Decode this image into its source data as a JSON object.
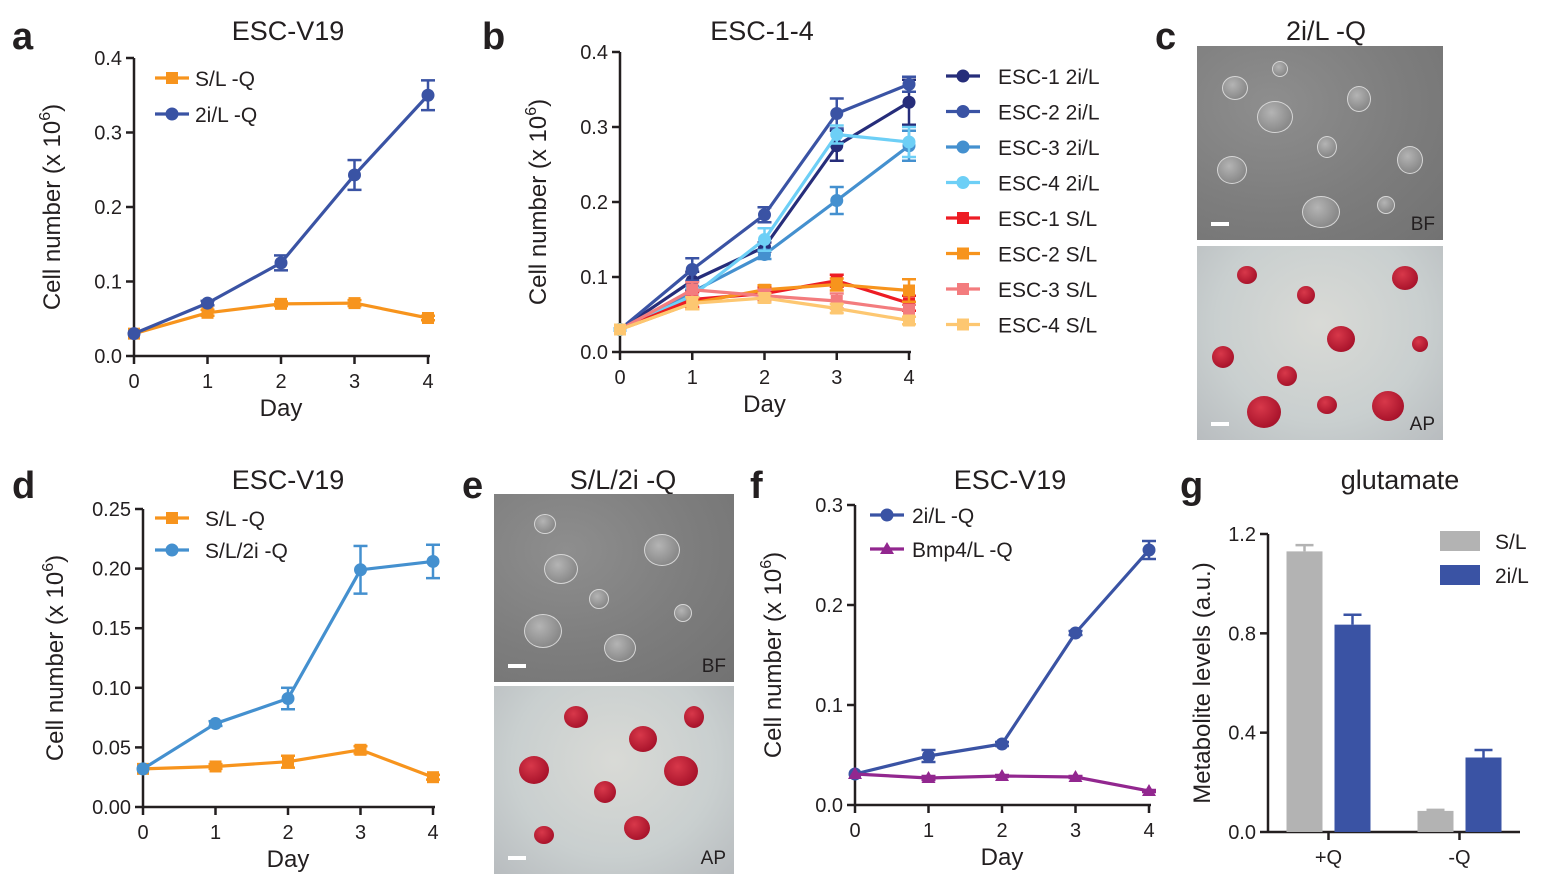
{
  "panels": {
    "a": {
      "letter": "a",
      "title": "ESC-V19"
    },
    "b": {
      "letter": "b",
      "title": "ESC-1-4"
    },
    "c": {
      "letter": "c",
      "title": "2i/L -Q",
      "top_tag": "BF",
      "bottom_tag": "AP"
    },
    "d": {
      "letter": "d",
      "title": "ESC-V19"
    },
    "e": {
      "letter": "e",
      "title": "S/L/2i -Q",
      "top_tag": "BF",
      "bottom_tag": "AP"
    },
    "f": {
      "letter": "f",
      "title": "ESC-V19"
    },
    "g": {
      "letter": "g",
      "title": "glutamate"
    }
  },
  "colors": {
    "orange": "#f7941d",
    "navy_blue": "#3a53a4",
    "light_blue": "#4490cf",
    "purple": "#92278f",
    "gray": "#b3b3b3",
    "dark_navy": "#262d7a",
    "sky_blue": "#6dcff6",
    "red": "#ed1c24",
    "pink": "#f37c7e",
    "light_orange": "#fdc771"
  },
  "chart_data": [
    {
      "id": "a",
      "type": "line",
      "title": "ESC-V19",
      "xlabel": "Day",
      "ylabel": "Cell number (x 10^6)",
      "x": [
        0,
        1,
        2,
        3,
        4
      ],
      "xlim": [
        0,
        4
      ],
      "ylim": [
        0,
        0.4
      ],
      "yticks": [
        "0.0",
        "0.1",
        "0.2",
        "0.3",
        "0.4"
      ],
      "legend": "top-left",
      "series": [
        {
          "name": "S/L -Q",
          "color": "#f7941d",
          "marker": "square",
          "values": [
            0.03,
            0.058,
            0.07,
            0.071,
            0.051
          ],
          "errors": [
            0,
            0.004,
            0.003,
            0.004,
            0.003
          ]
        },
        {
          "name": "2i/L -Q",
          "color": "#3a53a4",
          "marker": "circle",
          "values": [
            0.03,
            0.071,
            0.125,
            0.243,
            0.35
          ],
          "errors": [
            0,
            0.003,
            0.01,
            0.02,
            0.02
          ]
        }
      ]
    },
    {
      "id": "b",
      "type": "line",
      "title": "ESC-1-4",
      "xlabel": "Day",
      "ylabel": "Cell number (x 10^6)",
      "x": [
        0,
        1,
        2,
        3,
        4
      ],
      "xlim": [
        0,
        4
      ],
      "ylim": [
        0,
        0.4
      ],
      "yticks": [
        "0.0",
        "0.1",
        "0.2",
        "0.3",
        "0.4"
      ],
      "legend": "right",
      "series": [
        {
          "name": "ESC-1 2i/L",
          "color": "#262d7a",
          "marker": "circle",
          "values": [
            0.03,
            0.095,
            0.14,
            0.275,
            0.333
          ],
          "errors": [
            0,
            0.012,
            0.006,
            0.02,
            0.03
          ]
        },
        {
          "name": "ESC-2 2i/L",
          "color": "#3a53a4",
          "marker": "circle",
          "values": [
            0.03,
            0.11,
            0.183,
            0.318,
            0.357
          ],
          "errors": [
            0,
            0.015,
            0.01,
            0.02,
            0.01
          ]
        },
        {
          "name": "ESC-3 2i/L",
          "color": "#4490cf",
          "marker": "circle",
          "values": [
            0.03,
            0.08,
            0.13,
            0.202,
            0.275
          ],
          "errors": [
            0,
            0.008,
            0.006,
            0.018,
            0.02
          ]
        },
        {
          "name": "ESC-4 2i/L",
          "color": "#6dcff6",
          "marker": "circle",
          "values": [
            0.03,
            0.075,
            0.15,
            0.29,
            0.28
          ],
          "errors": [
            0,
            0.01,
            0.015,
            0.012,
            0.02
          ]
        },
        {
          "name": "ESC-1 S/L",
          "color": "#ed1c24",
          "marker": "square",
          "values": [
            0.03,
            0.07,
            0.078,
            0.095,
            0.065
          ],
          "errors": [
            0,
            0.01,
            0.008,
            0.008,
            0.01
          ]
        },
        {
          "name": "ESC-2 S/L",
          "color": "#f7941d",
          "marker": "square",
          "values": [
            0.03,
            0.065,
            0.083,
            0.09,
            0.082
          ],
          "errors": [
            0,
            0.008,
            0.006,
            0.008,
            0.015
          ]
        },
        {
          "name": "ESC-3 S/L",
          "color": "#f37c7e",
          "marker": "square",
          "values": [
            0.03,
            0.083,
            0.075,
            0.068,
            0.055
          ],
          "errors": [
            0,
            0.01,
            0.008,
            0.01,
            0.008
          ]
        },
        {
          "name": "ESC-4 S/L",
          "color": "#fdc771",
          "marker": "square",
          "values": [
            0.03,
            0.065,
            0.072,
            0.058,
            0.042
          ],
          "errors": [
            0,
            0.008,
            0.006,
            0.006,
            0.005
          ]
        }
      ]
    },
    {
      "id": "d",
      "type": "line",
      "title": "ESC-V19",
      "xlabel": "Day",
      "ylabel": "Cell number (x 10^6)",
      "x": [
        0,
        1,
        2,
        3,
        4
      ],
      "xlim": [
        0,
        4
      ],
      "ylim": [
        0,
        0.25
      ],
      "yticks": [
        "0.00",
        "0.05",
        "0.10",
        "0.15",
        "0.20",
        "0.25"
      ],
      "legend": "top-left",
      "series": [
        {
          "name": "S/L -Q",
          "color": "#f7941d",
          "marker": "square",
          "values": [
            0.032,
            0.034,
            0.038,
            0.048,
            0.025
          ],
          "errors": [
            0,
            0.002,
            0.005,
            0.003,
            0.002
          ]
        },
        {
          "name": "S/L/2i -Q",
          "color": "#4490cf",
          "marker": "circle",
          "values": [
            0.032,
            0.07,
            0.091,
            0.199,
            0.206
          ],
          "errors": [
            0,
            0.002,
            0.009,
            0.02,
            0.014
          ]
        }
      ]
    },
    {
      "id": "f",
      "type": "line",
      "title": "ESC-V19",
      "xlabel": "Day",
      "ylabel": "Cell number (x 10^6)",
      "x": [
        0,
        1,
        2,
        3,
        4
      ],
      "xlim": [
        0,
        4
      ],
      "ylim": [
        0,
        0.3
      ],
      "yticks": [
        "0.0",
        "0.1",
        "0.2",
        "0.3"
      ],
      "legend": "top-left",
      "series": [
        {
          "name": "2i/L -Q",
          "color": "#3a53a4",
          "marker": "circle",
          "values": [
            0.031,
            0.049,
            0.061,
            0.172,
            0.255
          ],
          "errors": [
            0,
            0.006,
            0.002,
            0.002,
            0.009
          ]
        },
        {
          "name": "Bmp4/L -Q",
          "color": "#92278f",
          "marker": "triangle",
          "values": [
            0.031,
            0.027,
            0.029,
            0.028,
            0.014
          ],
          "errors": [
            0,
            0.002,
            0.001,
            0.001,
            0.001
          ]
        }
      ]
    },
    {
      "id": "g",
      "type": "bar",
      "title": "glutamate",
      "ylabel": "Metabolite levels (a.u.)",
      "categories": [
        "+Q",
        "-Q"
      ],
      "ylim": [
        0,
        1.2
      ],
      "yticks": [
        "0.0",
        "0.4",
        "0.8",
        "1.2"
      ],
      "legend": "top-right",
      "series": [
        {
          "name": "S/L",
          "color": "#b3b3b3",
          "values": [
            1.13,
            0.085
          ],
          "errors": [
            0.025,
            0.004
          ]
        },
        {
          "name": "2i/L",
          "color": "#3a53a4",
          "values": [
            0.835,
            0.3
          ],
          "errors": [
            0.04,
            0.03
          ]
        }
      ]
    }
  ]
}
